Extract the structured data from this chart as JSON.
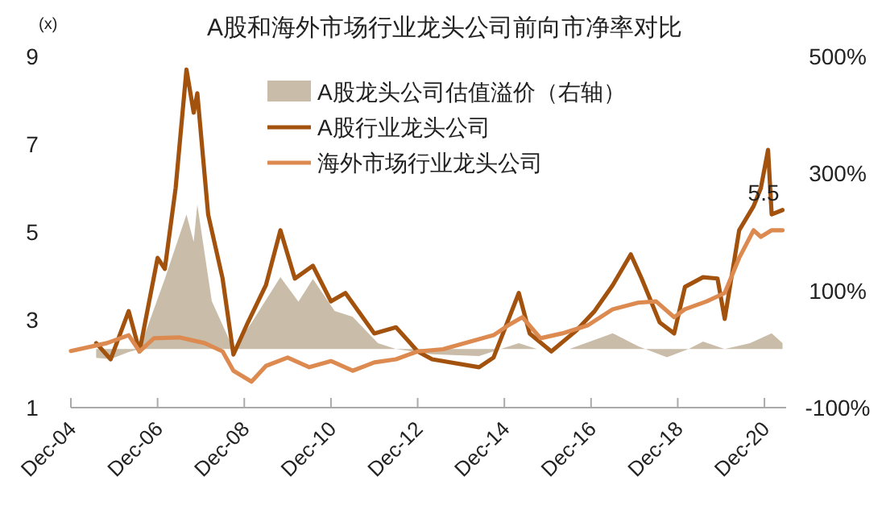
{
  "chart_data": {
    "type": "line",
    "title": "A股和海外市场行业龙头公司前向市净率对比",
    "ylabel": "(x)",
    "xlim": [
      "2004-12",
      "2021-06"
    ],
    "xticks": [
      {
        "value": "2004-12",
        "label": "Dec-04"
      },
      {
        "value": "2006-12",
        "label": "Dec-06"
      },
      {
        "value": "2008-12",
        "label": "Dec-08"
      },
      {
        "value": "2010-12",
        "label": "Dec-10"
      },
      {
        "value": "2012-12",
        "label": "Dec-12"
      },
      {
        "value": "2014-12",
        "label": "Dec-14"
      },
      {
        "value": "2016-12",
        "label": "Dec-16"
      },
      {
        "value": "2018-12",
        "label": "Dec-18"
      },
      {
        "value": "2020-12",
        "label": "Dec-20"
      }
    ],
    "ylim": [
      1,
      9
    ],
    "yticks": [
      1,
      3,
      5,
      7,
      9
    ],
    "y2lim": [
      -100,
      500
    ],
    "y2ticks": [
      {
        "value": -100,
        "label": "-100%"
      },
      {
        "value": 100,
        "label": "100%"
      },
      {
        "value": 300,
        "label": "300%"
      },
      {
        "value": 500,
        "label": "500%"
      }
    ],
    "grid": false,
    "legend": "top",
    "marker": "none",
    "line_style": "solid",
    "annotations": [
      {
        "text": "5.5",
        "x": "2021-05",
        "y": 5.5
      }
    ],
    "series": [
      {
        "name": "A股龙头公司估值溢价（右轴）",
        "type": "area",
        "axis": "y2",
        "color": "#c9bca9",
        "x": [
          "2005-07",
          "2005-11",
          "2006-04",
          "2006-07",
          "2007-02",
          "2007-08",
          "2007-10",
          "2007-11",
          "2008-03",
          "2008-09",
          "2009-02",
          "2009-10",
          "2010-03",
          "2010-07",
          "2011-01",
          "2011-06",
          "2012-01",
          "2012-06",
          "2013-04",
          "2014-05",
          "2014-11",
          "2015-04",
          "2015-09",
          "2016-06",
          "2017-06",
          "2018-01",
          "2018-09",
          "2019-03",
          "2019-07",
          "2020-01",
          "2020-08",
          "2021-02",
          "2021-05"
        ],
        "values": [
          -15,
          -17,
          -5,
          0,
          120,
          230,
          183,
          247,
          82,
          0,
          45,
          123,
          81,
          120,
          65,
          55,
          10,
          0,
          -9,
          -12,
          0,
          10,
          0,
          0,
          27,
          5,
          -14,
          0,
          13,
          0,
          10,
          27,
          10
        ]
      },
      {
        "name": "A股行业龙头公司",
        "color": "#a3520e",
        "x": [
          "2005-07",
          "2005-11",
          "2006-04",
          "2006-07",
          "2006-12",
          "2007-02",
          "2007-05",
          "2007-08",
          "2007-10",
          "2007-11",
          "2008-02",
          "2008-06",
          "2008-09",
          "2009-01",
          "2009-06",
          "2009-10",
          "2010-02",
          "2010-07",
          "2010-12",
          "2011-04",
          "2011-12",
          "2012-06",
          "2012-12",
          "2013-04",
          "2014-05",
          "2014-09",
          "2015-04",
          "2015-07",
          "2016-01",
          "2016-08",
          "2017-01",
          "2017-06",
          "2017-11",
          "2018-02",
          "2018-07",
          "2018-11",
          "2019-02",
          "2019-07",
          "2019-11",
          "2020-01",
          "2020-05",
          "2020-09",
          "2020-11",
          "2021-01",
          "2021-02",
          "2021-05"
        ],
        "values": [
          2.47,
          2.1,
          3.2,
          2.28,
          4.41,
          4.16,
          6.0,
          8.7,
          7.72,
          8.16,
          5.4,
          3.94,
          2.21,
          2.94,
          3.79,
          5.04,
          3.94,
          4.23,
          3.42,
          3.61,
          2.69,
          2.83,
          2.28,
          2.1,
          1.92,
          2.14,
          3.61,
          2.69,
          2.28,
          2.76,
          3.2,
          3.79,
          4.49,
          3.94,
          2.94,
          2.69,
          3.75,
          3.97,
          3.94,
          3.02,
          5.04,
          5.59,
          6.0,
          6.87,
          5.4,
          5.5
        ]
      },
      {
        "name": "海外市场行业龙头公司",
        "color": "#dc8a50",
        "x": [
          "2004-12",
          "2005-10",
          "2006-04",
          "2006-07",
          "2006-11",
          "2007-06",
          "2008-01",
          "2008-06",
          "2008-09",
          "2009-02",
          "2009-06",
          "2009-12",
          "2010-06",
          "2010-12",
          "2011-06",
          "2011-12",
          "2012-06",
          "2012-12",
          "2013-07",
          "2014-01",
          "2014-09",
          "2015-01",
          "2015-05",
          "2015-10",
          "2016-04",
          "2016-11",
          "2017-06",
          "2018-01",
          "2018-06",
          "2018-11",
          "2019-02",
          "2019-08",
          "2020-01",
          "2020-05",
          "2020-09",
          "2020-11",
          "2021-02",
          "2021-05"
        ],
        "values": [
          2.29,
          2.47,
          2.65,
          2.28,
          2.58,
          2.6,
          2.47,
          2.28,
          1.84,
          1.59,
          1.95,
          2.14,
          1.92,
          2.06,
          1.84,
          2.03,
          2.1,
          2.28,
          2.33,
          2.47,
          2.65,
          2.87,
          3.06,
          2.58,
          2.69,
          2.87,
          3.24,
          3.39,
          3.42,
          3.06,
          3.24,
          3.42,
          3.61,
          4.41,
          5.04,
          4.89,
          5.04,
          5.04
        ]
      }
    ]
  }
}
